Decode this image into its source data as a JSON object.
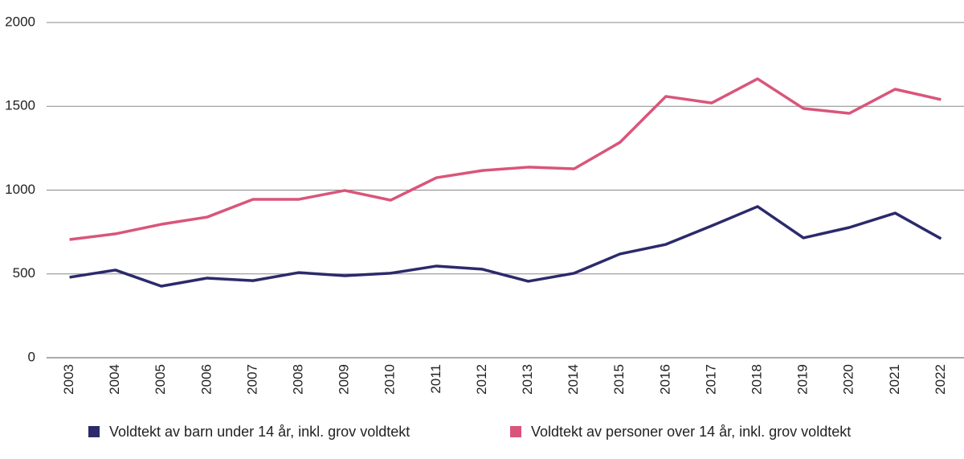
{
  "chart_data": {
    "type": "line",
    "categories": [
      "2003",
      "2004",
      "2005",
      "2006",
      "2007",
      "2008",
      "2009",
      "2010",
      "2011",
      "2012",
      "2013",
      "2014",
      "2015",
      "2016",
      "2017",
      "2018",
      "2019",
      "2020",
      "2021",
      "2022"
    ],
    "series": [
      {
        "name": "Voldtekt av barn under 14 år, inkl. grov voldtekt",
        "color": "#2b2a6b",
        "values": [
          480,
          523,
          427,
          475,
          460,
          508,
          489,
          504,
          547,
          528,
          456,
          504,
          619,
          676,
          787,
          902,
          715,
          777,
          863,
          710
        ]
      },
      {
        "name": "Voldtekt av personer over 14 år, inkl. grov voldtekt",
        "color": "#d9557a",
        "values": [
          705,
          739,
          796,
          839,
          945,
          945,
          998,
          940,
          1074,
          1117,
          1137,
          1127,
          1285,
          1559,
          1520,
          1664,
          1487,
          1458,
          1602,
          1540
        ]
      }
    ],
    "ylim": [
      0,
      2000
    ],
    "yticks": [
      0,
      500,
      1000,
      1500,
      2000
    ],
    "grid": true,
    "legend": "bottom"
  }
}
